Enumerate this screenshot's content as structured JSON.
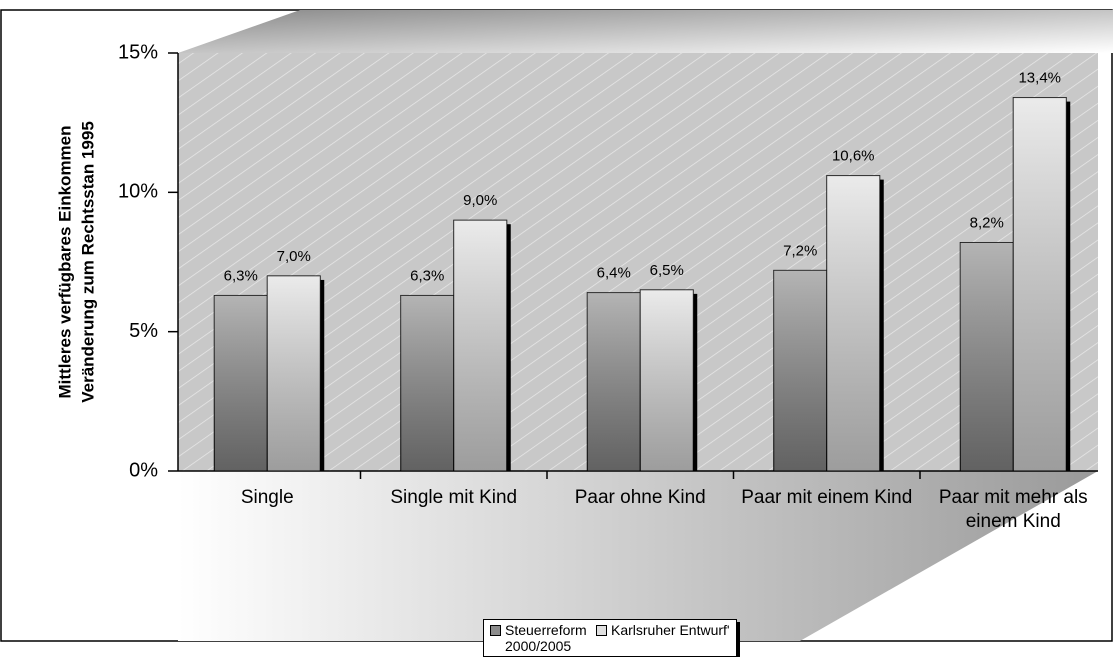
{
  "chart_data": {
    "type": "bar",
    "y_label_lines": [
      "Mittleres verfügbares Einkommen",
      "Veränderung zum Rechtsstan 1995"
    ],
    "categories": [
      "Single",
      "Single mit Kind",
      "Paar ohne Kind",
      "Paar mit einem Kind",
      "Paar mit mehr als einem Kind"
    ],
    "series": [
      {
        "name": "Steuerreform 2000/2005",
        "color": "#8c8c8c",
        "values": [
          6.3,
          6.3,
          6.4,
          7.2,
          8.2
        ],
        "value_labels": [
          "6,3%",
          "6,3%",
          "6,4%",
          "7,2%",
          "8,2%"
        ]
      },
      {
        "name": "Karlsruher Entwurf'",
        "color": "#e0e0e0",
        "values": [
          7.0,
          9.0,
          6.5,
          10.6,
          13.4
        ],
        "value_labels": [
          "7,0%",
          "9,0%",
          "6,5%",
          "10,6%",
          "13,4%"
        ]
      }
    ],
    "ylim": [
      0,
      15
    ],
    "yticks": [
      {
        "value": 0,
        "label": "0%"
      },
      {
        "value": 5,
        "label": "5%"
      },
      {
        "value": 10,
        "label": "10%"
      },
      {
        "value": 15,
        "label": "15%"
      }
    ],
    "legend": "bottom"
  }
}
